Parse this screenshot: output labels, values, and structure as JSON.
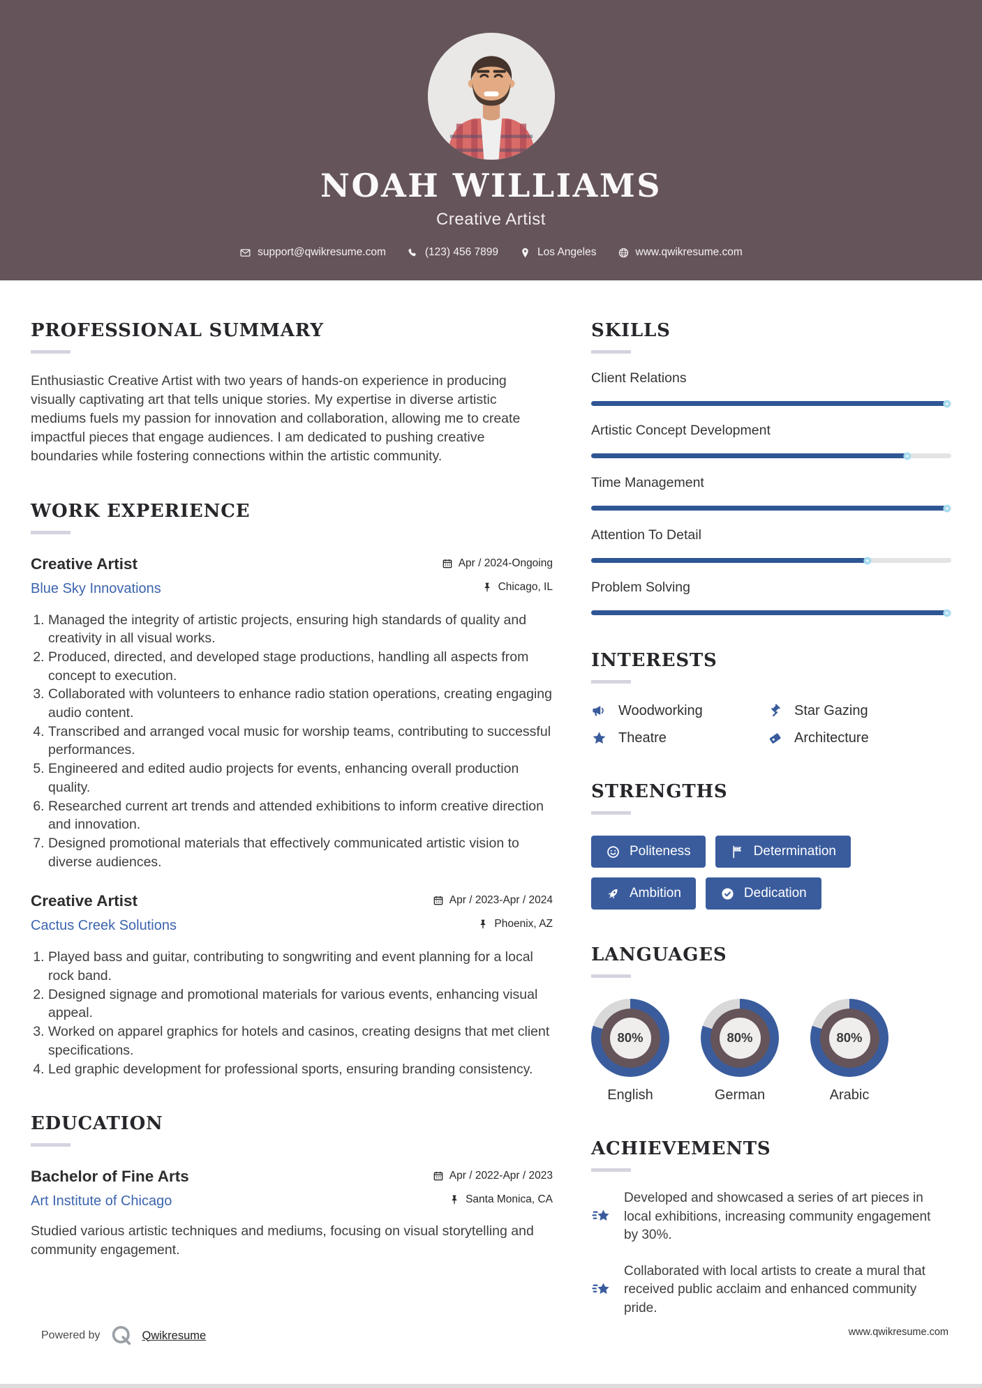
{
  "colors": {
    "accent": "#3a5c9d",
    "bar_blue": "#2f5694",
    "header_bg": "#655459",
    "link_blue": "#3c64ad",
    "track_gray": "#e4e4e4"
  },
  "header": {
    "name": "NOAH WILLIAMS",
    "title": "Creative Artist",
    "contact": [
      {
        "icon": "envelope-icon",
        "text": "support@qwikresume.com"
      },
      {
        "icon": "phone-icon",
        "text": "(123) 456 7899"
      },
      {
        "icon": "map-pin-icon",
        "text": "Los Angeles"
      },
      {
        "icon": "globe-icon",
        "text": "www.qwikresume.com"
      }
    ]
  },
  "summary": {
    "heading": "PROFESSIONAL SUMMARY",
    "text": "Enthusiastic Creative Artist with two years of hands-on experience in producing visually captivating art that tells unique stories. My expertise in diverse artistic mediums fuels my passion for innovation and collaboration, allowing me to create impactful pieces that engage audiences. I am dedicated to pushing creative boundaries while fostering connections within the artistic community."
  },
  "work": {
    "heading": "WORK EXPERIENCE",
    "jobs": [
      {
        "title": "Creative Artist",
        "company": "Blue Sky Innovations",
        "date": "Apr / 2024-Ongoing",
        "location": "Chicago, IL",
        "bullets": [
          "Managed the integrity of artistic projects, ensuring high standards of quality and creativity in all visual works.",
          "Produced, directed, and developed stage productions, handling all aspects from concept to execution.",
          "Collaborated with volunteers to enhance radio station operations, creating engaging audio content.",
          "Transcribed and arranged vocal music for worship teams, contributing to successful performances.",
          "Engineered and edited audio projects for events, enhancing overall production quality.",
          "Researched current art trends and attended exhibitions to inform creative direction and innovation.",
          "Designed promotional materials that effectively communicated artistic vision to diverse audiences."
        ]
      },
      {
        "title": "Creative Artist",
        "company": "Cactus Creek Solutions",
        "date": "Apr / 2023-Apr / 2024",
        "location": "Phoenix, AZ",
        "bullets": [
          "Played bass and guitar, contributing to songwriting and event planning for a local rock band.",
          "Designed signage and promotional materials for various events, enhancing visual appeal.",
          "Worked on apparel graphics for hotels and casinos, creating designs that met client specifications.",
          "Led graphic development for professional sports, ensuring branding consistency."
        ]
      }
    ]
  },
  "education": {
    "heading": "EDUCATION",
    "degree": "Bachelor of Fine Arts",
    "school": "Art Institute of Chicago",
    "date": "Apr / 2022-Apr / 2023",
    "location": "Santa Monica, CA",
    "description": "Studied various artistic techniques and mediums, focusing on visual storytelling and community engagement."
  },
  "skills": {
    "heading": "SKILLS",
    "items": [
      {
        "label": "Client Relations",
        "percent": 99
      },
      {
        "label": "Artistic Concept Development",
        "percent": 88
      },
      {
        "label": "Time Management",
        "percent": 99
      },
      {
        "label": "Attention To Detail",
        "percent": 77
      },
      {
        "label": "Problem Solving",
        "percent": 99
      }
    ]
  },
  "interests": {
    "heading": "INTERESTS",
    "items": [
      {
        "label": "Woodworking",
        "icon": "megaphone-icon"
      },
      {
        "label": "Star Gazing",
        "icon": "gavel-icon"
      },
      {
        "label": "Theatre",
        "icon": "star-icon"
      },
      {
        "label": "Architecture",
        "icon": "tag-icon"
      }
    ]
  },
  "strengths": {
    "heading": "STRENGTHS",
    "items": [
      {
        "label": "Politeness",
        "icon": "smiley-icon"
      },
      {
        "label": "Determination",
        "icon": "flag-icon"
      },
      {
        "label": "Ambition",
        "icon": "rocket-icon"
      },
      {
        "label": "Dedication",
        "icon": "check-circle-icon"
      }
    ]
  },
  "languages": {
    "heading": "LANGUAGES",
    "items": [
      {
        "label": "English",
        "percent": 80
      },
      {
        "label": "German",
        "percent": 80
      },
      {
        "label": "Arabic",
        "percent": 80
      }
    ]
  },
  "achievements": {
    "heading": "ACHIEVEMENTS",
    "items": [
      {
        "icon": "shooting-star-icon",
        "text": "Developed and showcased a series of art pieces in local exhibitions, increasing community engagement by 30%."
      },
      {
        "icon": "shooting-star-icon",
        "text": "Collaborated with local artists to create a mural that received public acclaim and enhanced community pride."
      }
    ]
  },
  "footer": {
    "powered_by": "Powered by",
    "brand": "Qwikresume",
    "website": "www.qwikresume.com"
  }
}
